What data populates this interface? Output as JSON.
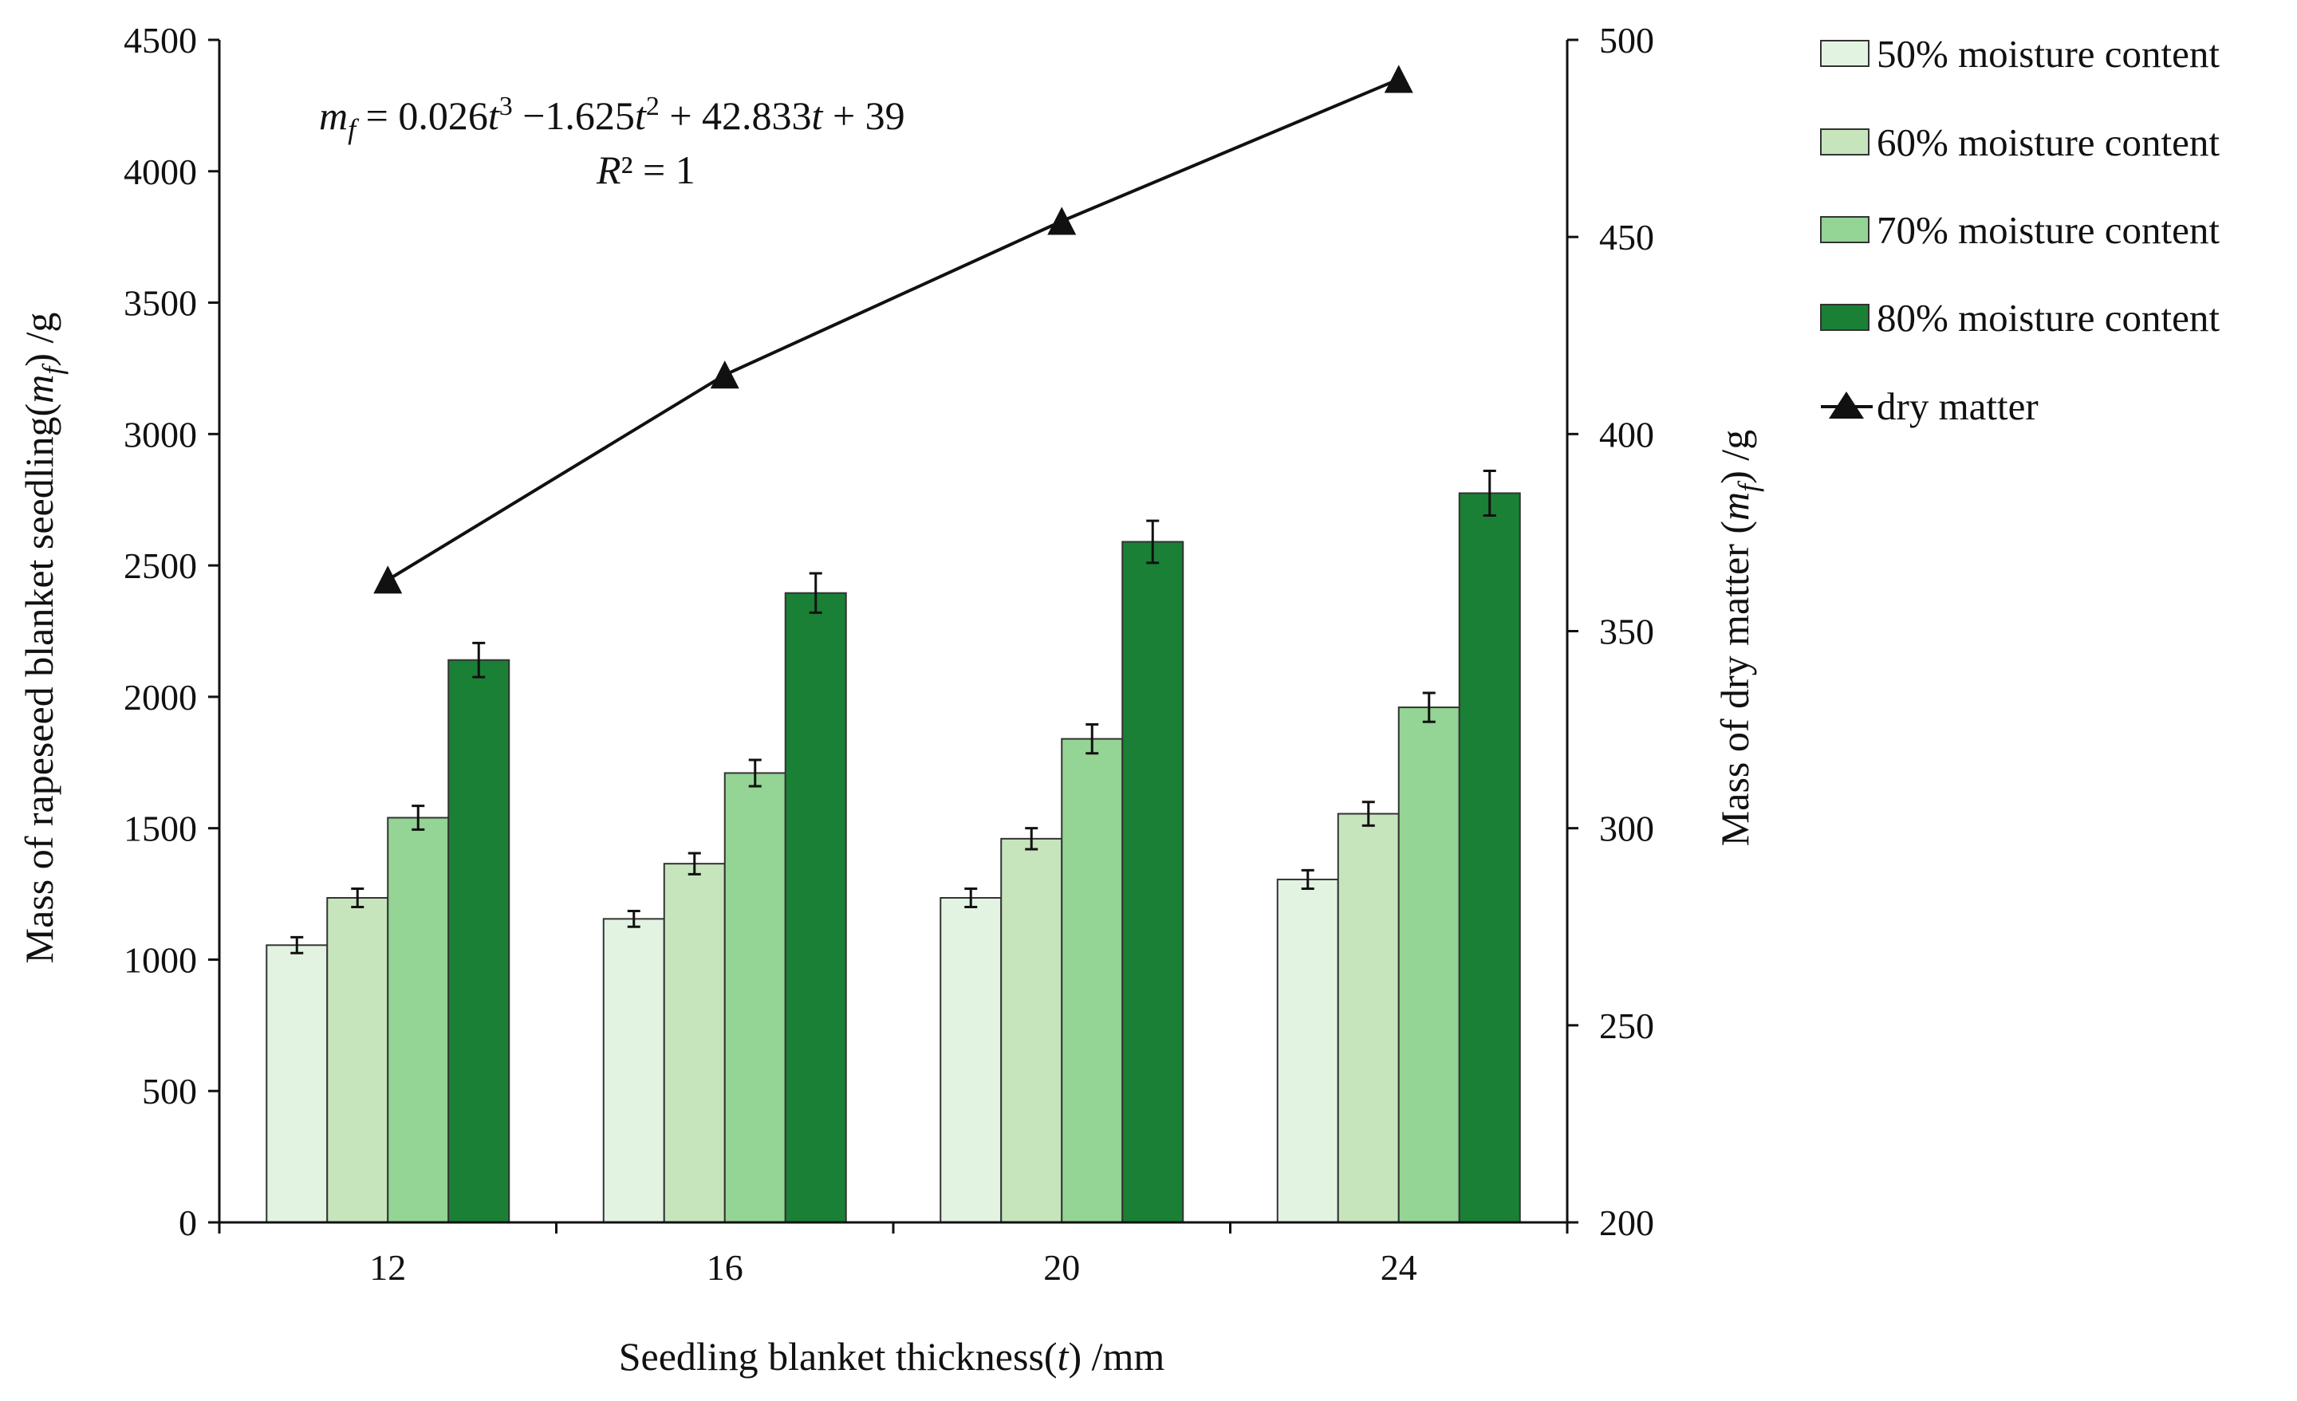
{
  "chart_data": {
    "type": "bar",
    "categories": [
      "12",
      "16",
      "20",
      "24"
    ],
    "xlabel": {
      "pre": "Seedling blanket thickness(",
      "var": "t",
      "post": ") /mm"
    },
    "ylabel_left": {
      "pre": "Mass of rapeseed blanket seedling(",
      "var": "m",
      "sub": "f",
      "post": ") /g"
    },
    "ylabel_right": {
      "pre": "Mass of dry matter (",
      "var": "m",
      "sub": "f",
      "post": ") /g"
    },
    "ylim_left": [
      0,
      4500
    ],
    "yticks_left": [
      "0",
      "500",
      "1000",
      "1500",
      "2000",
      "2500",
      "3000",
      "3500",
      "4000",
      "4500"
    ],
    "ylim_right": [
      200,
      500
    ],
    "yticks_right": [
      "200",
      "250",
      "300",
      "350",
      "400",
      "450",
      "500"
    ],
    "series": [
      {
        "name": "50% moisture content",
        "color": "#e2f3e2",
        "values": [
          1055,
          1155,
          1235,
          1305
        ],
        "errors": [
          30,
          30,
          35,
          35
        ]
      },
      {
        "name": "60% moisture content",
        "color": "#c7e5bd",
        "values": [
          1235,
          1365,
          1460,
          1555
        ],
        "errors": [
          35,
          40,
          40,
          45
        ]
      },
      {
        "name": "70% moisture content",
        "color": "#94d494",
        "values": [
          1540,
          1710,
          1840,
          1960
        ],
        "errors": [
          45,
          50,
          55,
          55
        ]
      },
      {
        "name": "80% moisture content",
        "color": "#1a8035",
        "values": [
          2140,
          2395,
          2590,
          2775
        ],
        "errors": [
          65,
          75,
          80,
          85
        ]
      }
    ],
    "line_series": {
      "name": "dry matter",
      "axis": "right",
      "color": "#111111",
      "marker": "triangle",
      "values": [
        363,
        415,
        454,
        490
      ]
    },
    "annotation": {
      "eq_lhs_var": "m",
      "eq_lhs_sub": "f",
      "eq_parts": [
        " = 0.026",
        "t",
        "3",
        " −1.625",
        "t",
        "2",
        " + 42.833",
        "t",
        " + 39"
      ],
      "r2_var": "R",
      "r2_rest": "² = 1"
    }
  }
}
